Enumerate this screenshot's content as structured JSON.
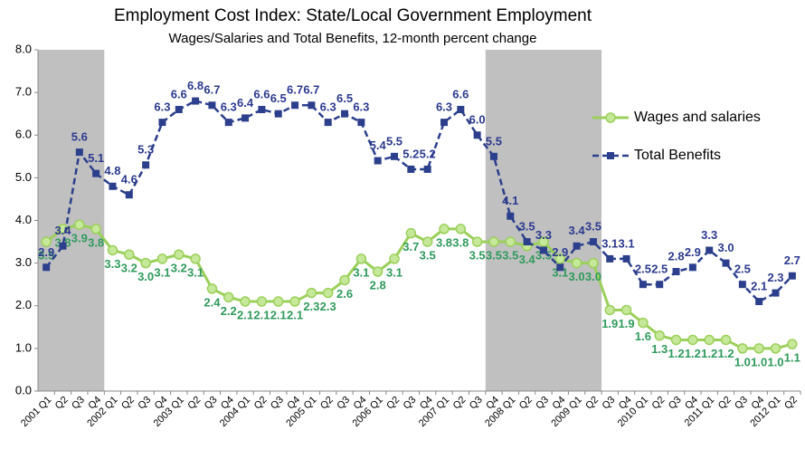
{
  "chart_data": {
    "type": "line",
    "title": "Employment Cost Index: State/Local Government Employment",
    "subtitle": "Wages/Salaries and Total Benefits, 12-month percent change",
    "categories": [
      "2001 Q1",
      "Q2",
      "Q3",
      "Q4",
      "2002 Q1",
      "Q2",
      "Q3",
      "Q4",
      "2003 Q1",
      "Q2",
      "Q3",
      "Q4",
      "2004 Q1",
      "Q2",
      "Q3",
      "Q4",
      "2005 Q1",
      "Q2",
      "Q3",
      "Q4",
      "2006 Q1",
      "Q2",
      "Q3",
      "Q4",
      "2007 Q1",
      "Q2",
      "Q3",
      "Q4",
      "2008 Q1",
      "Q2",
      "Q3",
      "Q4",
      "2009 Q1",
      "Q2",
      "Q3",
      "Q4",
      "2010 Q1",
      "Q2",
      "Q3",
      "Q4",
      "2011 Q1",
      "Q2",
      "Q3",
      "Q4",
      "2012 Q1",
      "Q2"
    ],
    "series": [
      {
        "name": "Wages and salaries",
        "color": "#9bd05a",
        "label_color": "#2f9a5c",
        "dashed": false,
        "marker": "circle",
        "values": [
          3.5,
          3.8,
          3.9,
          3.8,
          3.3,
          3.2,
          3.0,
          3.1,
          3.2,
          3.1,
          2.4,
          2.2,
          2.1,
          2.1,
          2.1,
          2.1,
          2.3,
          2.3,
          2.6,
          3.1,
          2.8,
          3.1,
          3.7,
          3.5,
          3.8,
          3.8,
          3.5,
          3.5,
          3.5,
          3.4,
          3.5,
          3.1,
          3.0,
          3.0,
          1.9,
          1.9,
          1.6,
          1.3,
          1.2,
          1.2,
          1.2,
          1.2,
          1.0,
          1.0,
          1.0,
          1.1
        ],
        "value_labels": [
          "3.5",
          "3.8",
          "3.9",
          "3.8",
          "3.3",
          "3.2",
          "3.0",
          "3.1",
          "3.2",
          "3.1",
          "2.4",
          "2.2",
          "2.1",
          "2.1",
          "2.1",
          "2.1",
          "2.3",
          "2.3",
          "2.6",
          "3.1",
          "2.8",
          "3.1",
          "3.7",
          "3.5",
          "3.8",
          "3.8",
          "3.5",
          "3.5",
          "3.5",
          "3.4",
          "3.5",
          "3.1",
          "3.0",
          "3.0",
          "1.9",
          "1.9",
          "1.6",
          "1.3",
          "1.2",
          "1.2",
          "1.2",
          "1.2",
          "1.0",
          "1.0",
          "1.0",
          "1.1"
        ]
      },
      {
        "name": "Total Benefits",
        "color": "#2b3f8c",
        "label_color": "#2b3a8f",
        "dashed": true,
        "marker": "square",
        "values": [
          2.9,
          3.4,
          5.6,
          5.1,
          4.8,
          4.6,
          5.3,
          6.3,
          6.6,
          6.8,
          6.7,
          6.3,
          6.4,
          6.6,
          6.5,
          6.7,
          6.7,
          6.3,
          6.5,
          6.3,
          5.4,
          5.5,
          5.2,
          5.2,
          6.3,
          6.6,
          6.0,
          5.5,
          4.1,
          3.5,
          3.3,
          2.9,
          3.4,
          3.5,
          3.1,
          3.1,
          2.5,
          2.5,
          2.8,
          2.9,
          3.3,
          3.0,
          2.5,
          2.1,
          2.3,
          2.7
        ],
        "value_labels": [
          "2.9",
          "3.4",
          "5.6",
          "5.1",
          "4.8",
          "4.6",
          "5.3",
          "6.3",
          "6.6",
          "6.8",
          "6.7",
          "6.3",
          "6.4",
          "6.6",
          "6.5",
          "6.7",
          "6.7",
          "6.3",
          "6.5",
          "6.3",
          "5.4",
          "5.5",
          "5.2",
          "5.2",
          "6.3",
          "6.6",
          "6.0",
          "5.5",
          "4.1",
          "3.5",
          "3.3",
          "2.9",
          "3.4",
          "3.5",
          "3.1",
          "3.1",
          "2.5",
          "2.5",
          "2.8",
          "2.9",
          "3.3",
          "3.0",
          "2.5",
          "2.1",
          "2.3",
          "2.7"
        ]
      }
    ],
    "ylim": [
      0,
      8
    ],
    "yticks": [
      {
        "value": 0,
        "label": "0.0"
      },
      {
        "value": 1,
        "label": "1.0"
      },
      {
        "value": 2,
        "label": "2.0"
      },
      {
        "value": 3,
        "label": "3.0"
      },
      {
        "value": 4,
        "label": "4.0"
      },
      {
        "value": 5,
        "label": "5.0"
      },
      {
        "value": 6,
        "label": "6.0"
      },
      {
        "value": 7,
        "label": "7.0"
      },
      {
        "value": 8,
        "label": "8.0"
      }
    ],
    "shaded_categories": [
      [
        0,
        3
      ],
      [
        27,
        33
      ]
    ],
    "shade_color": "#c0c0c0",
    "legend": "right"
  }
}
